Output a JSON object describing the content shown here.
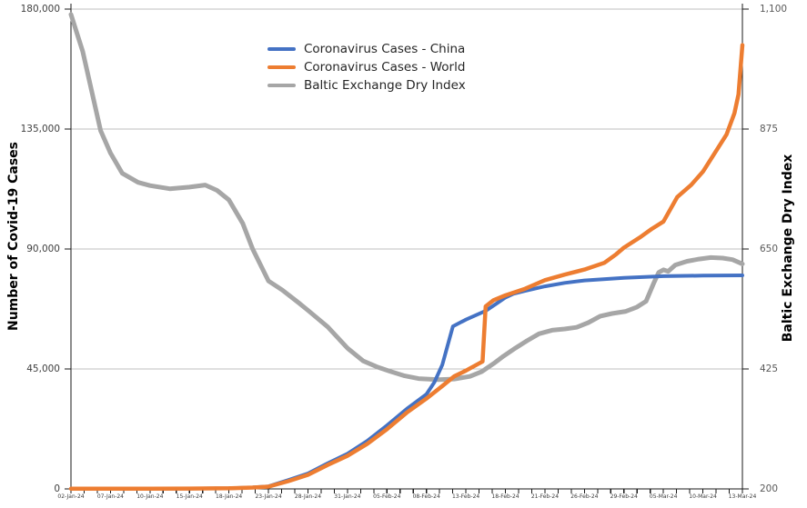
{
  "chart_data": {
    "type": "line",
    "title": "",
    "legend_position": "top-center",
    "grid": "horizontal",
    "categories": [
      "02-Jan-24",
      "07-Jan-24",
      "10-Jan-24",
      "15-Jan-24",
      "18-Jan-24",
      "23-Jan-24",
      "28-Jan-24",
      "31-Jan-24",
      "05-Feb-24",
      "08-Feb-24",
      "13-Feb-24",
      "18-Feb-24",
      "21-Feb-24",
      "26-Feb-24",
      "29-Feb-24",
      "05-Mar-24",
      "10-Mar-24",
      "13-Mar-24"
    ],
    "left_axis": {
      "title": "Number of Covid-19 Cases",
      "min": 0,
      "max": 180000,
      "step": 45000,
      "tick_labels": [
        "180,000",
        "135,000",
        "90,000",
        "45,000",
        "0"
      ]
    },
    "right_axis": {
      "title": "Baltic Exchange Dry Index",
      "min": 200,
      "max": 1100,
      "step": 225,
      "tick_labels": [
        "1,100",
        "875",
        "650",
        "425",
        "200"
      ]
    },
    "series": [
      {
        "name": "Coronavirus Cases - China",
        "key": "china",
        "axis": "left",
        "color": "#4472C4",
        "stroke_width": 4,
        "points": [
          [
            0,
            60
          ],
          [
            1,
            60
          ],
          [
            2,
            60
          ],
          [
            3,
            120
          ],
          [
            4,
            250
          ],
          [
            4.6,
            550
          ],
          [
            5,
            950
          ],
          [
            5.5,
            3300
          ],
          [
            6,
            5800
          ],
          [
            6.5,
            9600
          ],
          [
            7,
            13200
          ],
          [
            7.5,
            18000
          ],
          [
            8,
            23800
          ],
          [
            8.5,
            30000
          ],
          [
            9,
            35500
          ],
          [
            9.2,
            40000
          ],
          [
            9.4,
            46500
          ],
          [
            9.67,
            61000
          ],
          [
            10,
            63500
          ],
          [
            10.5,
            66800
          ],
          [
            10.8,
            69800
          ],
          [
            11,
            71800
          ],
          [
            11.2,
            73200
          ],
          [
            11.5,
            74300
          ],
          [
            12,
            76000
          ],
          [
            12.5,
            77300
          ],
          [
            13,
            78200
          ],
          [
            14,
            79200
          ],
          [
            15,
            79800
          ],
          [
            16,
            80000
          ],
          [
            17,
            80100
          ]
        ]
      },
      {
        "name": "Coronavirus Cases - World",
        "key": "world",
        "axis": "left",
        "color": "#ED7D31",
        "stroke_width": 4.5,
        "points": [
          [
            0,
            60
          ],
          [
            2,
            60
          ],
          [
            3,
            120
          ],
          [
            4,
            250
          ],
          [
            4.6,
            500
          ],
          [
            5,
            850
          ],
          [
            5.5,
            2900
          ],
          [
            6,
            5300
          ],
          [
            6.5,
            9000
          ],
          [
            7,
            12400
          ],
          [
            7.5,
            16900
          ],
          [
            8,
            22400
          ],
          [
            8.5,
            28600
          ],
          [
            9,
            33900
          ],
          [
            9.4,
            38600
          ],
          [
            9.7,
            42200
          ],
          [
            10,
            44400
          ],
          [
            10.42,
            47800
          ],
          [
            10.5,
            68500
          ],
          [
            10.7,
            70800
          ],
          [
            11,
            72600
          ],
          [
            11.5,
            75100
          ],
          [
            12,
            78300
          ],
          [
            12.5,
            80400
          ],
          [
            13,
            82300
          ],
          [
            13.5,
            84800
          ],
          [
            13.8,
            88000
          ],
          [
            14,
            90500
          ],
          [
            14.4,
            94300
          ],
          [
            14.7,
            97500
          ],
          [
            15,
            100300
          ],
          [
            15.35,
            109500
          ],
          [
            15.7,
            114000
          ],
          [
            16,
            119000
          ],
          [
            16.3,
            126000
          ],
          [
            16.6,
            133000
          ],
          [
            16.8,
            141000
          ],
          [
            16.9,
            148000
          ],
          [
            17,
            166500
          ]
        ]
      },
      {
        "name": "Baltic Exchange Dry Index",
        "key": "bdi",
        "axis": "right",
        "color": "#A6A6A6",
        "stroke_width": 5,
        "points": [
          [
            0,
            1090
          ],
          [
            0.3,
            1020
          ],
          [
            0.75,
            872
          ],
          [
            1,
            830
          ],
          [
            1.3,
            792
          ],
          [
            1.7,
            775
          ],
          [
            2,
            769
          ],
          [
            2.5,
            763
          ],
          [
            3,
            766
          ],
          [
            3.4,
            770
          ],
          [
            3.7,
            760
          ],
          [
            4,
            742
          ],
          [
            4.35,
            698
          ],
          [
            4.6,
            650
          ],
          [
            5,
            590
          ],
          [
            5.35,
            573
          ],
          [
            5.8,
            547
          ],
          [
            6,
            535
          ],
          [
            6.5,
            504
          ],
          [
            7,
            464
          ],
          [
            7.4,
            440
          ],
          [
            7.75,
            429
          ],
          [
            8.1,
            420
          ],
          [
            8.45,
            412
          ],
          [
            8.8,
            407
          ],
          [
            9.3,
            405
          ],
          [
            9.7,
            406
          ],
          [
            10.1,
            411
          ],
          [
            10.4,
            420
          ],
          [
            10.7,
            435
          ],
          [
            10.95,
            449
          ],
          [
            11.25,
            464
          ],
          [
            11.55,
            478
          ],
          [
            11.85,
            491
          ],
          [
            12.2,
            498
          ],
          [
            12.5,
            500
          ],
          [
            12.8,
            503
          ],
          [
            13.1,
            512
          ],
          [
            13.4,
            524
          ],
          [
            13.7,
            529
          ],
          [
            14.05,
            533
          ],
          [
            14.33,
            541
          ],
          [
            14.56,
            552
          ],
          [
            14.75,
            585
          ],
          [
            14.88,
            606
          ],
          [
            15,
            611
          ],
          [
            15.12,
            608
          ],
          [
            15.3,
            620
          ],
          [
            15.6,
            627
          ],
          [
            15.9,
            631
          ],
          [
            16.2,
            634
          ],
          [
            16.5,
            633
          ],
          [
            16.75,
            630
          ],
          [
            17,
            622
          ]
        ]
      }
    ],
    "colors": {
      "gridline": "#BFBFBF",
      "axis_line": "#1a1a1a",
      "tick_label_left": "#404040",
      "tick_label_right": "#595959",
      "x_tick_label": "#3a3a3a"
    }
  }
}
